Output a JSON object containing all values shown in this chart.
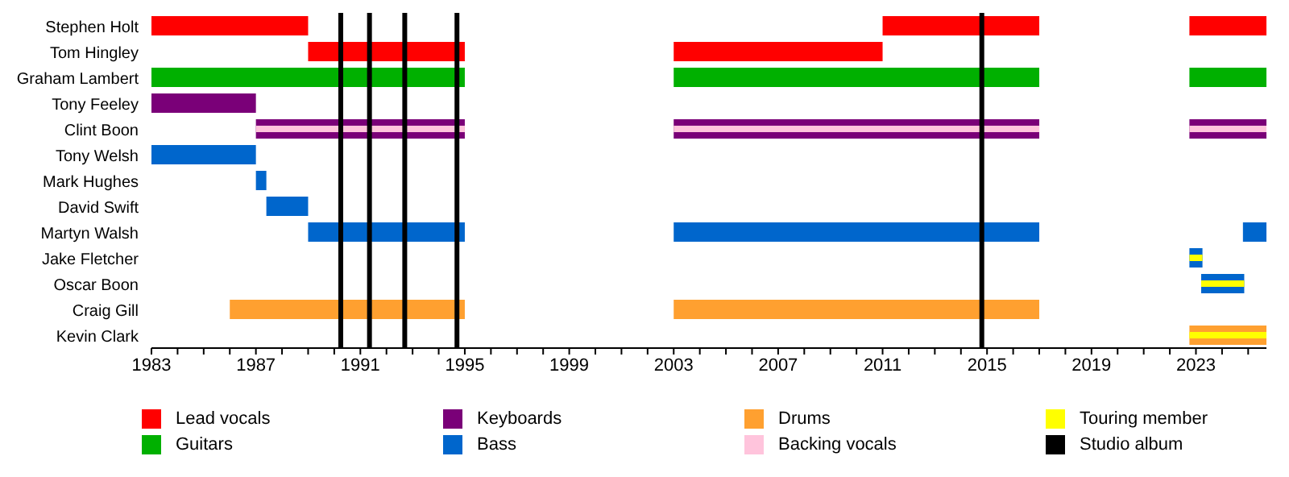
{
  "chart_data": {
    "type": "bar",
    "orientation": "horizontal",
    "categories": [
      "Stephen Holt",
      "Tom Hingley",
      "Graham Lambert",
      "Tony Feeley",
      "Clint Boon",
      "Tony Welsh",
      "Mark Hughes",
      "David Swift",
      "Martyn Walsh",
      "Jake Fletcher",
      "Oscar Boon",
      "Craig Gill",
      "Kevin Clark"
    ],
    "xlim": [
      1983,
      2025.7
    ],
    "xticks": [
      1983,
      {
        "value": 1984,
        "label": null
      },
      {
        "value": 1985,
        "label": null
      },
      {
        "value": 1986,
        "label": null
      },
      1987,
      {
        "value": 1988,
        "label": null
      },
      {
        "value": 1989,
        "label": null
      },
      {
        "value": 1990,
        "label": null
      },
      1991,
      {
        "value": 1992,
        "label": null
      },
      {
        "value": 1993,
        "label": null
      },
      {
        "value": 1994,
        "label": null
      },
      1995,
      {
        "value": 1996,
        "label": null
      },
      {
        "value": 1997,
        "label": null
      },
      {
        "value": 1998,
        "label": null
      },
      1999,
      {
        "value": 2000,
        "label": null
      },
      {
        "value": 2001,
        "label": null
      },
      {
        "value": 2002,
        "label": null
      },
      2003,
      {
        "value": 2004,
        "label": null
      },
      {
        "value": 2005,
        "label": null
      },
      {
        "value": 2006,
        "label": null
      },
      2007,
      {
        "value": 2008,
        "label": null
      },
      {
        "value": 2009,
        "label": null
      },
      {
        "value": 2010,
        "label": null
      },
      2011,
      {
        "value": 2012,
        "label": null
      },
      {
        "value": 2013,
        "label": null
      },
      {
        "value": 2014,
        "label": null
      },
      2015,
      {
        "value": 2016,
        "label": null
      },
      {
        "value": 2017,
        "label": null
      },
      {
        "value": 2018,
        "label": null
      },
      2019,
      {
        "value": 2020,
        "label": null
      },
      {
        "value": 2021,
        "label": null
      },
      {
        "value": 2022,
        "label": null
      },
      2023,
      {
        "value": 2024,
        "label": null
      },
      {
        "value": 2025,
        "label": null
      }
    ],
    "series": [
      {
        "name": "Lead vocals",
        "color": "#ff0000",
        "base": [
          1983,
          1989,
          null,
          null,
          null,
          null,
          null,
          null,
          null,
          null,
          null,
          null,
          null
        ],
        "values": [
          6,
          6,
          null,
          null,
          null,
          null,
          null,
          null,
          null,
          null,
          null,
          null,
          null
        ]
      },
      {
        "name": "Guitars",
        "color": "#00b000",
        "base": [
          null,
          null,
          1983,
          null,
          null,
          null,
          null,
          null,
          null,
          null,
          null,
          null,
          null
        ],
        "values": [
          null,
          null,
          12,
          null,
          null,
          null,
          null,
          null,
          null,
          null,
          null,
          null,
          null
        ]
      },
      {
        "name": "Keyboards",
        "color": "#7a0078",
        "base": [
          null,
          null,
          null,
          1983,
          1987,
          null,
          null,
          null,
          null,
          null,
          null,
          null,
          null
        ],
        "values": [
          null,
          null,
          null,
          4,
          8,
          null,
          null,
          null,
          null,
          null,
          null,
          null,
          null
        ]
      },
      {
        "name": "Bass",
        "color": "#0066cc",
        "base": [
          null,
          null,
          null,
          null,
          null,
          1983,
          1987,
          1987.4,
          1989,
          2022.75,
          2023.2,
          null,
          null
        ],
        "values": [
          null,
          null,
          null,
          null,
          null,
          4,
          0.4,
          1.6,
          6,
          0.5,
          1.65,
          null,
          null
        ]
      },
      {
        "name": "Drums",
        "color": "#ffa030",
        "base": [
          null,
          null,
          null,
          null,
          null,
          null,
          null,
          null,
          null,
          null,
          null,
          1986,
          2022.75
        ],
        "values": [
          null,
          null,
          null,
          null,
          null,
          null,
          null,
          null,
          null,
          null,
          null,
          9,
          2.95
        ]
      },
      {
        "name": "Backing vocals",
        "color": "#ffc4dc",
        "base": [
          null,
          null,
          null,
          null,
          1987,
          null,
          null,
          null,
          null,
          null,
          null,
          null,
          null
        ],
        "values": [
          null,
          null,
          null,
          null,
          8,
          null,
          null,
          null,
          null,
          null,
          null,
          null,
          null
        ]
      },
      {
        "name": "Touring member",
        "color": "#ffff00",
        "base": [
          null,
          null,
          null,
          null,
          null,
          null,
          null,
          null,
          null,
          2022.75,
          2023.2,
          null,
          2022.75
        ],
        "values": [
          null,
          null,
          null,
          null,
          null,
          null,
          null,
          null,
          null,
          0.5,
          1.65,
          null,
          2.95
        ]
      },
      {
        "color": "#ff0000",
        "base": [
          2011,
          2003,
          null,
          null,
          null,
          null,
          null,
          null,
          null,
          null,
          null,
          null,
          null
        ],
        "values": [
          6,
          8,
          null,
          null,
          null,
          null,
          null,
          null,
          null,
          null,
          null,
          null,
          null
        ]
      },
      {
        "color": "#ff0000",
        "base": [
          2022.75,
          null,
          null,
          null,
          null,
          null,
          null,
          null,
          null,
          null,
          null,
          null,
          null
        ],
        "values": [
          2.95,
          null,
          null,
          null,
          null,
          null,
          null,
          null,
          null,
          null,
          null,
          null,
          null
        ]
      },
      {
        "color": "#00b000",
        "base": [
          null,
          null,
          2003,
          null,
          null,
          null,
          null,
          null,
          null,
          null,
          null,
          null,
          null
        ],
        "values": [
          null,
          null,
          14,
          null,
          null,
          null,
          null,
          null,
          null,
          null,
          null,
          null,
          null
        ]
      },
      {
        "color": "#00b000",
        "base": [
          null,
          null,
          2022.75,
          null,
          null,
          null,
          null,
          null,
          null,
          null,
          null,
          null,
          null
        ],
        "values": [
          null,
          null,
          2.95,
          null,
          null,
          null,
          null,
          null,
          null,
          null,
          null,
          null,
          null
        ]
      },
      {
        "color": "#7a0078",
        "base": [
          null,
          null,
          null,
          null,
          2003,
          null,
          null,
          null,
          null,
          null,
          null,
          null,
          null
        ],
        "values": [
          null,
          null,
          null,
          null,
          14,
          null,
          null,
          null,
          null,
          null,
          null,
          null,
          null
        ]
      },
      {
        "color": "#7a0078",
        "base": [
          null,
          null,
          null,
          null,
          2022.75,
          null,
          null,
          null,
          null,
          null,
          null,
          null,
          null
        ],
        "values": [
          null,
          null,
          null,
          null,
          2.95,
          null,
          null,
          null,
          null,
          null,
          null,
          null,
          null
        ]
      },
      {
        "color": "#0066cc",
        "base": [
          null,
          null,
          null,
          null,
          null,
          null,
          null,
          null,
          2003,
          null,
          null,
          null,
          null
        ],
        "values": [
          null,
          null,
          null,
          null,
          null,
          null,
          null,
          null,
          14,
          null,
          null,
          null,
          null
        ]
      },
      {
        "color": "#0066cc",
        "base": [
          null,
          null,
          null,
          null,
          null,
          null,
          null,
          null,
          2024.8,
          null,
          null,
          null,
          null
        ],
        "values": [
          null,
          null,
          null,
          null,
          null,
          null,
          null,
          null,
          0.9,
          null,
          null,
          null,
          null
        ]
      },
      {
        "color": "#ffa030",
        "base": [
          null,
          null,
          null,
          null,
          null,
          null,
          null,
          null,
          null,
          null,
          null,
          2003,
          null
        ],
        "values": [
          null,
          null,
          null,
          null,
          null,
          null,
          null,
          null,
          null,
          null,
          null,
          14,
          null
        ]
      },
      {
        "color": "#ffc4dc",
        "base": [
          null,
          null,
          null,
          null,
          2003,
          null,
          null,
          null,
          null,
          null,
          null,
          null,
          null
        ],
        "values": [
          null,
          null,
          null,
          null,
          14,
          null,
          null,
          null,
          null,
          null,
          null,
          null,
          null
        ]
      },
      {
        "color": "#ffc4dc",
        "base": [
          null,
          null,
          null,
          null,
          2022.75,
          null,
          null,
          null,
          null,
          null,
          null,
          null,
          null
        ],
        "values": [
          null,
          null,
          null,
          null,
          2.95,
          null,
          null,
          null,
          null,
          null,
          null,
          null,
          null
        ]
      }
    ],
    "ref_lines": [
      {
        "axis": "x",
        "value": 1990.25,
        "color": "#000000",
        "label": "Studio album"
      },
      {
        "axis": "x",
        "value": 1991.35,
        "color": "#000000"
      },
      {
        "axis": "x",
        "value": 1992.7,
        "color": "#000000"
      },
      {
        "axis": "x",
        "value": 1994.7,
        "color": "#000000"
      },
      {
        "axis": "x",
        "value": 2014.8,
        "color": "#000000"
      }
    ],
    "legend": "bottom",
    "grid": false
  }
}
